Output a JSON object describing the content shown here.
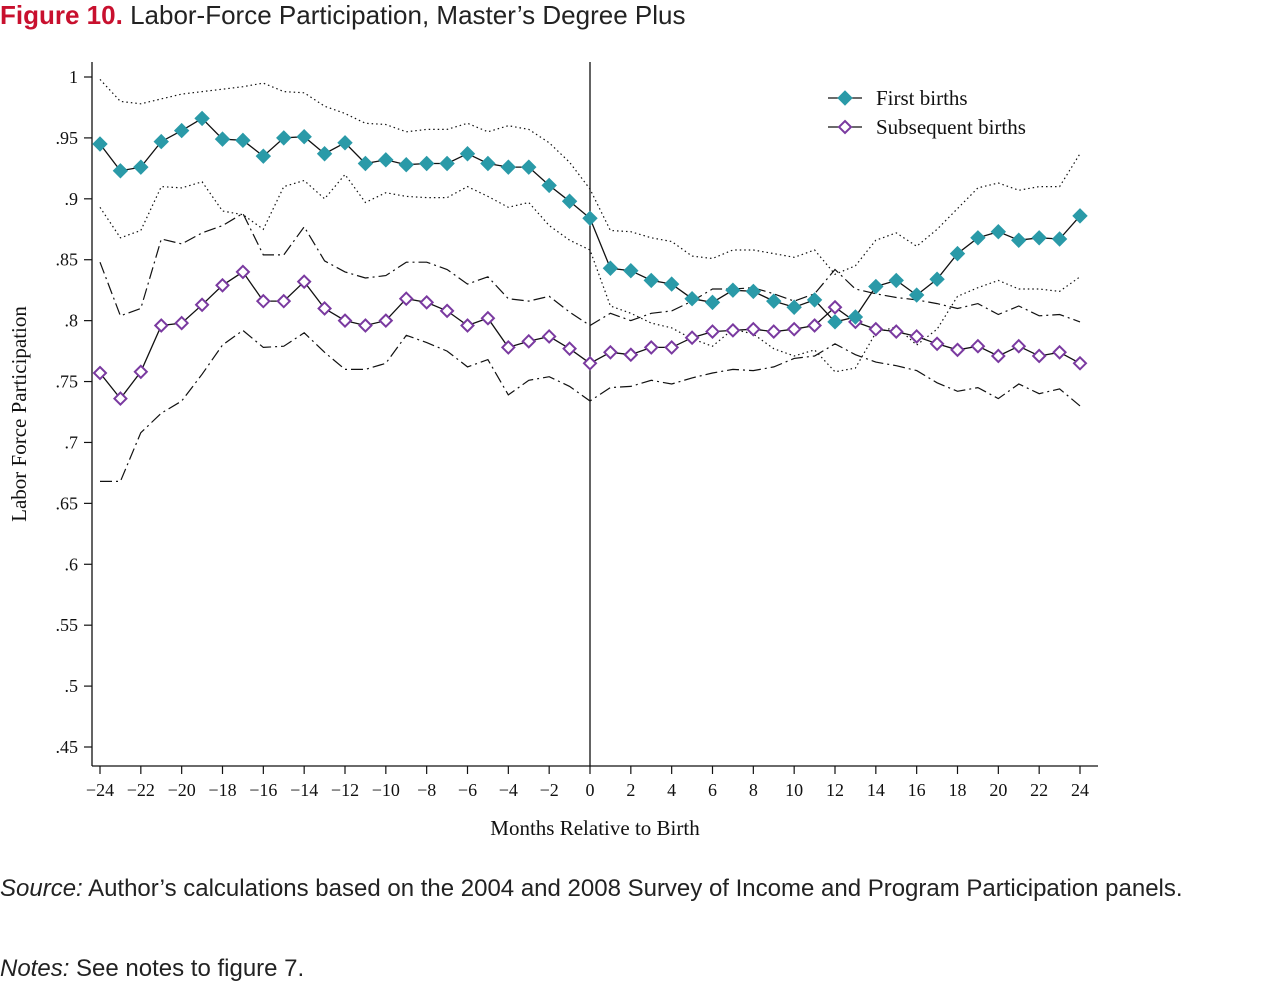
{
  "figure": {
    "number": "Figure 10.",
    "title": "Labor-Force Participation, Master’s Degree Plus"
  },
  "colors": {
    "first": "#2a9aa8",
    "subsequent": "#7a3aa0",
    "line": "#111111"
  },
  "chart_data": {
    "type": "line",
    "xlabel": "Months Relative to Birth",
    "ylabel": "Labor Force Participation",
    "xlim": [
      -24,
      24
    ],
    "ylim": [
      0.45,
      1.0
    ],
    "xticks": [
      -24,
      -22,
      -20,
      -18,
      -16,
      -14,
      -12,
      -10,
      -8,
      -6,
      -4,
      -2,
      0,
      2,
      4,
      6,
      8,
      10,
      12,
      14,
      16,
      18,
      20,
      22,
      24
    ],
    "xtick_labels": [
      "−24",
      "−22",
      "−20",
      "−18",
      "−16",
      "−14",
      "−12",
      "−10",
      "−8",
      "−6",
      "−4",
      "−2",
      "0",
      "2",
      "4",
      "6",
      "8",
      "10",
      "12",
      "14",
      "16",
      "18",
      "20",
      "22",
      "24"
    ],
    "yticks": [
      0.45,
      0.5,
      0.55,
      0.6,
      0.65,
      0.7,
      0.75,
      0.8,
      0.85,
      0.9,
      0.95,
      1.0
    ],
    "ytick_labels": [
      ".45",
      ".5",
      ".55",
      ".6",
      ".65",
      ".7",
      ".75",
      ".8",
      ".85",
      ".9",
      ".95",
      "1"
    ],
    "vline_x": 0,
    "legend_position": "top-right",
    "x": [
      -24,
      -23,
      -22,
      -21,
      -20,
      -19,
      -18,
      -17,
      -16,
      -15,
      -14,
      -13,
      -12,
      -11,
      -10,
      -9,
      -8,
      -7,
      -6,
      -5,
      -4,
      -3,
      -2,
      -1,
      0,
      1,
      2,
      3,
      4,
      5,
      6,
      7,
      8,
      9,
      10,
      11,
      12,
      13,
      14,
      15,
      16,
      17,
      18,
      19,
      20,
      21,
      22,
      23,
      24
    ],
    "series": [
      {
        "name": "First births",
        "marker": "filled-diamond",
        "values": [
          0.945,
          0.923,
          0.926,
          0.947,
          0.956,
          0.966,
          0.949,
          0.948,
          0.935,
          0.95,
          0.951,
          0.937,
          0.946,
          0.929,
          0.932,
          0.928,
          0.929,
          0.929,
          0.937,
          0.929,
          0.926,
          0.926,
          0.911,
          0.898,
          0.884,
          0.843,
          0.841,
          0.833,
          0.83,
          0.818,
          0.815,
          0.825,
          0.824,
          0.816,
          0.811,
          0.817,
          0.799,
          0.803,
          0.828,
          0.833,
          0.821,
          0.834,
          0.855,
          0.868,
          0.873,
          0.866,
          0.868,
          0.867,
          0.886
        ],
        "upper_ci": [
          0.998,
          0.98,
          0.978,
          0.982,
          0.986,
          0.988,
          0.99,
          0.992,
          0.995,
          0.988,
          0.987,
          0.976,
          0.97,
          0.962,
          0.961,
          0.955,
          0.957,
          0.957,
          0.962,
          0.955,
          0.96,
          0.957,
          0.946,
          0.93,
          0.908,
          0.874,
          0.873,
          0.868,
          0.865,
          0.853,
          0.851,
          0.858,
          0.858,
          0.855,
          0.852,
          0.858,
          0.838,
          0.845,
          0.866,
          0.872,
          0.861,
          0.875,
          0.892,
          0.909,
          0.913,
          0.907,
          0.91,
          0.91,
          0.937
        ],
        "lower_ci": [
          0.893,
          0.868,
          0.874,
          0.91,
          0.909,
          0.914,
          0.89,
          0.887,
          0.875,
          0.91,
          0.915,
          0.9,
          0.92,
          0.897,
          0.905,
          0.902,
          0.901,
          0.901,
          0.91,
          0.902,
          0.893,
          0.897,
          0.878,
          0.866,
          0.858,
          0.812,
          0.806,
          0.798,
          0.794,
          0.785,
          0.779,
          0.793,
          0.789,
          0.777,
          0.771,
          0.776,
          0.758,
          0.761,
          0.79,
          0.795,
          0.78,
          0.793,
          0.82,
          0.827,
          0.833,
          0.826,
          0.826,
          0.824,
          0.836
        ]
      },
      {
        "name": "Subsequent births",
        "marker": "hollow-diamond",
        "values": [
          0.757,
          0.736,
          0.758,
          0.796,
          0.798,
          0.813,
          0.829,
          0.84,
          0.816,
          0.816,
          0.832,
          0.81,
          0.8,
          0.796,
          0.8,
          0.818,
          0.815,
          0.808,
          0.796,
          0.802,
          0.778,
          0.783,
          0.787,
          0.777,
          0.765,
          0.774,
          0.772,
          0.778,
          0.778,
          0.786,
          0.791,
          0.792,
          0.793,
          0.791,
          0.793,
          0.796,
          0.811,
          0.799,
          0.793,
          0.791,
          0.787,
          0.781,
          0.776,
          0.779,
          0.771,
          0.779,
          0.771,
          0.774,
          0.765
        ],
        "upper_ci": [
          0.848,
          0.804,
          0.81,
          0.867,
          0.863,
          0.872,
          0.878,
          0.888,
          0.854,
          0.854,
          0.877,
          0.849,
          0.84,
          0.835,
          0.837,
          0.848,
          0.848,
          0.842,
          0.83,
          0.836,
          0.818,
          0.816,
          0.82,
          0.807,
          0.796,
          0.806,
          0.8,
          0.806,
          0.808,
          0.816,
          0.826,
          0.826,
          0.827,
          0.822,
          0.816,
          0.822,
          0.842,
          0.826,
          0.822,
          0.819,
          0.817,
          0.814,
          0.81,
          0.814,
          0.805,
          0.812,
          0.804,
          0.805,
          0.799
        ],
        "lower_ci": [
          0.668,
          0.668,
          0.708,
          0.724,
          0.734,
          0.756,
          0.78,
          0.792,
          0.778,
          0.779,
          0.79,
          0.774,
          0.76,
          0.76,
          0.765,
          0.788,
          0.782,
          0.775,
          0.762,
          0.768,
          0.739,
          0.751,
          0.754,
          0.746,
          0.734,
          0.745,
          0.746,
          0.751,
          0.748,
          0.753,
          0.757,
          0.76,
          0.759,
          0.762,
          0.769,
          0.771,
          0.781,
          0.772,
          0.766,
          0.763,
          0.759,
          0.749,
          0.742,
          0.745,
          0.736,
          0.748,
          0.74,
          0.744,
          0.73
        ]
      }
    ]
  },
  "notes": {
    "source_label": "Source:",
    "source_text": " Author’s calculations based on the 2004 and 2008 Survey of Income and Program Participation panels.",
    "notes_label": "Notes:",
    "notes_text": " See notes to figure 7."
  }
}
